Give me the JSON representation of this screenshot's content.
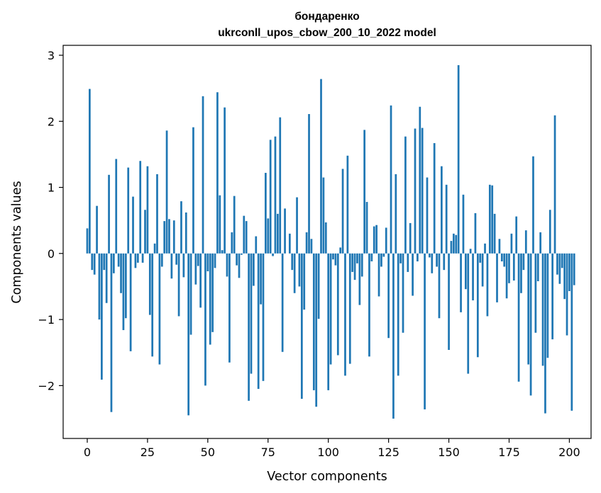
{
  "chart_data": {
    "type": "bar",
    "title_line1": "бондаренко",
    "title_line2": "ukrconll_upos_cbow_200_10_2022 model",
    "xlabel": "Vector components",
    "ylabel": "Components values",
    "xlim": [
      -10,
      209
    ],
    "ylim": [
      -2.8,
      3.15
    ],
    "xticks": [
      0,
      25,
      50,
      75,
      100,
      125,
      150,
      175,
      200
    ],
    "xtick_labels": [
      "0",
      "25",
      "50",
      "75",
      "100",
      "125",
      "150",
      "175",
      "200"
    ],
    "yticks": [
      -2,
      -1,
      0,
      1,
      2,
      3
    ],
    "ytick_labels": [
      "−2",
      "−1",
      "0",
      "1",
      "2",
      "3"
    ],
    "bar_color": "#1f77b4",
    "grid": false,
    "values": [
      0.38,
      2.49,
      -0.25,
      -0.32,
      0.72,
      -1.0,
      -1.91,
      -0.25,
      -0.75,
      1.19,
      -2.4,
      -0.3,
      1.43,
      -0.2,
      -0.6,
      -1.16,
      -0.98,
      1.3,
      -1.48,
      0.86,
      -0.22,
      -0.14,
      1.4,
      -0.14,
      0.66,
      1.32,
      -0.93,
      -1.56,
      0.15,
      1.2,
      -1.68,
      -0.2,
      0.49,
      1.86,
      0.52,
      -0.38,
      0.5,
      -0.17,
      -0.95,
      0.79,
      -0.36,
      0.62,
      -2.45,
      -1.23,
      1.91,
      -0.47,
      -0.19,
      -0.82,
      2.38,
      -2.0,
      -0.27,
      -1.38,
      -1.19,
      -0.22,
      2.44,
      0.88,
      0.05,
      2.21,
      -0.35,
      -1.65,
      0.32,
      0.87,
      -0.18,
      -0.37,
      -0.02,
      0.57,
      0.49,
      -2.23,
      -1.82,
      -0.49,
      0.26,
      -2.05,
      -0.77,
      -1.93,
      1.22,
      0.53,
      1.72,
      -0.04,
      1.77,
      0.6,
      2.06,
      -1.49,
      0.68,
      0.0,
      0.3,
      -0.25,
      -0.6,
      0.85,
      -0.5,
      -2.2,
      -0.85,
      0.32,
      2.11,
      0.22,
      -2.07,
      -2.32,
      -0.99,
      2.64,
      1.15,
      0.47,
      -2.07,
      -1.68,
      -0.09,
      -0.18,
      -1.54,
      0.09,
      1.28,
      -1.85,
      1.48,
      -1.67,
      -0.28,
      -0.4,
      -0.15,
      -0.78,
      -0.35,
      1.87,
      0.78,
      -1.56,
      -0.12,
      0.41,
      0.43,
      -0.65,
      -0.2,
      -0.05,
      0.39,
      -1.28,
      2.24,
      -2.5,
      1.2,
      -1.85,
      -0.15,
      -1.2,
      1.77,
      -0.28,
      0.46,
      -0.64,
      1.89,
      -0.12,
      2.22,
      1.9,
      -2.36,
      1.15,
      -0.06,
      -0.3,
      1.67,
      -0.2,
      -0.98,
      1.32,
      -0.25,
      1.04,
      -1.46,
      0.19,
      0.3,
      0.28,
      2.85,
      -0.89,
      0.89,
      -0.54,
      -1.82,
      0.07,
      -0.71,
      0.61,
      -1.57,
      -0.14,
      -0.5,
      0.15,
      -0.95,
      1.04,
      1.03,
      0.6,
      -0.74,
      0.22,
      -0.12,
      -0.2,
      -0.68,
      -0.45,
      0.3,
      -0.41,
      0.56,
      -1.94,
      -0.6,
      -0.25,
      0.35,
      -1.68,
      -2.15,
      1.47,
      -1.2,
      -0.42,
      0.32,
      -1.7,
      -2.42,
      -1.58,
      0.66,
      -1.3,
      2.09,
      -0.32,
      -0.46,
      -0.22,
      -0.69,
      -1.24,
      -0.57,
      -2.38,
      -0.48
    ]
  }
}
